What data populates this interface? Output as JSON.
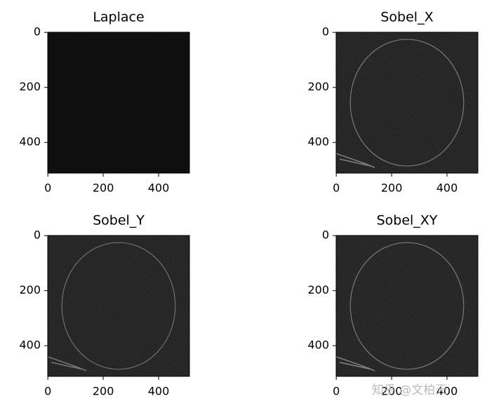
{
  "chart_data": [
    {
      "type": "image",
      "title": "Laplace",
      "xlim": [
        -0.5,
        511.5
      ],
      "ylim": [
        511.5,
        -0.5
      ],
      "xticks": [
        0,
        200,
        400
      ],
      "yticks": [
        0,
        200,
        400
      ]
    },
    {
      "type": "image",
      "title": "Sobel_X",
      "xlim": [
        -0.5,
        511.5
      ],
      "ylim": [
        511.5,
        -0.5
      ],
      "xticks": [
        0,
        200,
        400
      ],
      "yticks": [
        0,
        200,
        400
      ]
    },
    {
      "type": "image",
      "title": "Sobel_Y",
      "xlim": [
        -0.5,
        511.5
      ],
      "ylim": [
        511.5,
        -0.5
      ],
      "xticks": [
        0,
        200,
        400
      ],
      "yticks": [
        0,
        200,
        400
      ]
    },
    {
      "type": "image",
      "title": "Sobel_XY",
      "xlim": [
        -0.5,
        511.5
      ],
      "ylim": [
        511.5,
        -0.5
      ],
      "xticks": [
        0,
        200,
        400
      ],
      "yticks": [
        0,
        200,
        400
      ]
    }
  ],
  "watermark": "知乎 @文柏天"
}
